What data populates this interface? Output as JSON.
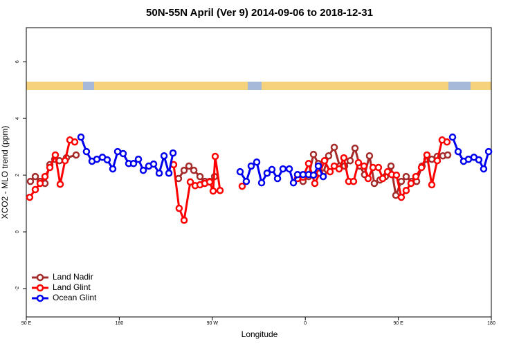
{
  "chart_data": {
    "type": "line",
    "title": "50N-55N April (Ver 9)   2014-09-06 to 2018-12-31",
    "x_label": "Longitude",
    "y_label": "XCO2 - MLO trend (ppm)",
    "xlim": [
      90,
      540
    ],
    "xticks": [
      {
        "value": 90,
        "label": "90 E"
      },
      180,
      {
        "value": 270,
        "label": "90 W"
      },
      {
        "value": 360,
        "label": "0"
      },
      {
        "value": 450,
        "label": "90 E"
      },
      {
        "value": 540,
        "label": "180"
      }
    ],
    "ylim": [
      -3,
      7.2
    ],
    "yticks": [
      -2,
      0,
      2,
      4,
      6
    ],
    "legend": "bottom-left",
    "series": [
      {
        "name": "Land Nadir",
        "color": "#a52a2a",
        "x": [
          94.0,
          98.7,
          103.4,
          108.1,
          112.8,
          117.5,
          122.1,
          128.8,
          138.2,
          null,
          237.3,
          242.7,
          247.4,
          252.1,
          258.1,
          262.8,
          267.5,
          272.2,
          null,
          357.8,
          363.2,
          367.9,
          372.6,
          377.3,
          382.6,
          388.0,
          393.3,
          398.0,
          403.4,
          408.1,
          412.7,
          417.4,
          422.1,
          426.8,
          432.2,
          437.5,
          442.9,
          447.6,
          452.9,
          457.6,
          463.0,
          467.7,
          473.0,
          477.7,
          482.4,
          487.7,
          493.1,
          497.8
        ],
        "values": [
          1.78,
          1.95,
          1.78,
          1.71,
          2.37,
          2.56,
          2.51,
          2.61,
          2.71,
          null,
          1.88,
          2.17,
          2.32,
          2.17,
          1.95,
          1.78,
          1.78,
          1.95,
          null,
          1.78,
          1.95,
          2.73,
          2.41,
          2.07,
          2.68,
          2.98,
          2.32,
          2.32,
          2.51,
          2.95,
          2.32,
          2.02,
          2.68,
          1.71,
          1.83,
          1.95,
          2.32,
          1.29,
          1.78,
          1.95,
          1.78,
          1.78,
          2.32,
          2.56,
          2.56,
          2.66,
          2.68,
          2.71
        ]
      },
      {
        "name": "Land Glint",
        "color": "#ff0000",
        "x": [
          93.3,
          98.7,
          103.4,
          108.1,
          112.8,
          118.1,
          122.8,
          127.5,
          132.2,
          136.9,
          null,
          232.6,
          237.9,
          242.7,
          248.7,
          253.4,
          258.1,
          262.8,
          267.5,
          270.8,
          272.8,
          277.5,
          null,
          298.9,
          null,
          352.5,
          357.8,
          363.2,
          369.2,
          373.9,
          378.6,
          384.0,
          388.0,
          392.7,
          397.3,
          402.0,
          406.7,
          411.4,
          416.8,
          420.8,
          425.5,
          430.8,
          434.9,
          439.6,
          443.6,
          448.2,
          452.9,
          457.6,
          462.3,
          467.0,
          472.4,
          477.7,
          482.4,
          487.7,
          492.4,
          497.1
        ],
        "values": [
          1.22,
          1.49,
          1.71,
          1.95,
          2.27,
          2.71,
          1.68,
          2.51,
          3.24,
          3.17,
          null,
          2.37,
          0.83,
          0.41,
          1.76,
          1.63,
          1.66,
          1.71,
          1.76,
          1.44,
          2.66,
          1.46,
          null,
          1.61,
          null,
          1.88,
          1.93,
          2.41,
          1.71,
          2.07,
          2.51,
          2.12,
          2.32,
          2.22,
          2.61,
          1.78,
          1.78,
          2.44,
          2.32,
          1.88,
          2.27,
          2.27,
          1.88,
          2.12,
          2.02,
          2.0,
          1.22,
          1.46,
          1.71,
          1.95,
          2.27,
          2.71,
          1.66,
          2.51,
          3.24,
          3.17
        ]
      },
      {
        "name": "Ocean Glint",
        "color": "#0000ee",
        "x": [
          142.9,
          148.2,
          153.6,
          158.3,
          163.7,
          168.3,
          173.7,
          178.4,
          183.7,
          189.1,
          193.8,
          198.5,
          203.2,
          208.5,
          213.2,
          218.6,
          223.3,
          228.0,
          232.0,
          null,
          296.9,
          302.9,
          307.6,
          313.0,
          317.7,
          323.0,
          327.7,
          333.1,
          338.4,
          344.5,
          348.5,
          352.5,
          357.8,
          363.2,
          367.9,
          372.6,
          377.3,
          null,
          502.5,
          507.9,
          513.2,
          517.9,
          523.2,
          527.9,
          532.6,
          537.4
        ],
        "values": [
          3.34,
          2.83,
          2.49,
          2.56,
          2.63,
          2.54,
          2.22,
          2.83,
          2.76,
          2.41,
          2.41,
          2.56,
          2.17,
          2.32,
          2.39,
          2.07,
          2.68,
          2.07,
          2.78,
          null,
          2.12,
          1.78,
          2.32,
          2.46,
          1.73,
          2.07,
          2.2,
          1.88,
          2.22,
          2.22,
          1.73,
          2.02,
          2.02,
          2.02,
          2.0,
          2.32,
          1.95,
          null,
          3.34,
          2.83,
          2.49,
          2.56,
          2.63,
          2.54,
          2.22,
          2.83
        ]
      }
    ]
  }
}
